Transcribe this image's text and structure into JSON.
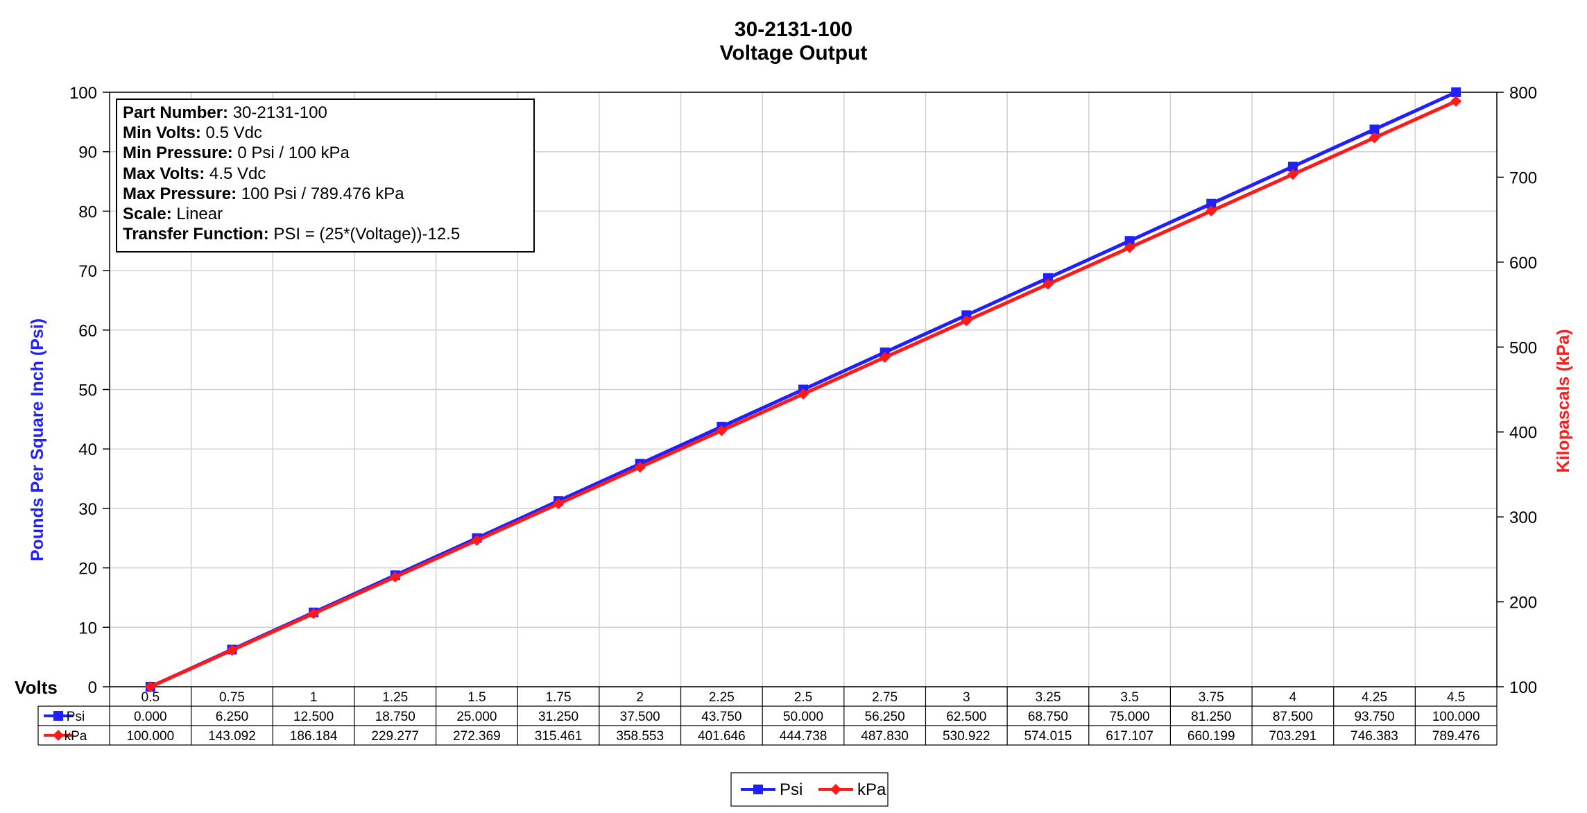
{
  "title_lines": [
    "30-2131-100",
    "Voltage Output"
  ],
  "info_box": [
    {
      "label": "Part Number:",
      "value": "30-2131-100"
    },
    {
      "label": "Min Volts:",
      "value": "0.5 Vdc"
    },
    {
      "label": "Min Pressure:",
      "value": "0 Psi / 100 kPa"
    },
    {
      "label": "Max Volts:",
      "value": "4.5 Vdc"
    },
    {
      "label": "Max Pressure:",
      "value": "100 Psi / 789.476 kPa"
    },
    {
      "label": "Scale:",
      "value": "Linear"
    },
    {
      "label": "Transfer Function:",
      "value": "PSI = (25*(Voltage))-12.5"
    }
  ],
  "chart_data": {
    "type": "line",
    "title": "30-2131-100 Voltage Output",
    "xlabel": "Volts",
    "ylabel": "Pounds Per Square Inch (Psi)",
    "y2label": "Kilopascals (kPa)",
    "categories": [
      "0.5",
      "0.75",
      "1",
      "1.25",
      "1.5",
      "1.75",
      "2",
      "2.25",
      "2.5",
      "2.75",
      "3",
      "3.25",
      "3.5",
      "3.75",
      "4",
      "4.25",
      "4.5"
    ],
    "ylim": [
      0,
      100
    ],
    "y2lim": [
      100,
      800
    ],
    "yticks": [
      "0",
      "10",
      "20",
      "30",
      "40",
      "50",
      "60",
      "70",
      "80",
      "90",
      "100"
    ],
    "y2ticks": [
      "100",
      "200",
      "300",
      "400",
      "500",
      "600",
      "700",
      "800"
    ],
    "grid": true,
    "legend_position": "bottom-center",
    "series": [
      {
        "name": "Psi",
        "axis": "left",
        "color": "#1f1fff",
        "marker": "square",
        "values": [
          0,
          6.25,
          12.5,
          18.75,
          25,
          31.25,
          37.5,
          43.75,
          50,
          56.25,
          62.5,
          68.75,
          75,
          81.25,
          87.5,
          93.75,
          100
        ],
        "labels": [
          "0.000",
          "6.250",
          "12.500",
          "18.750",
          "25.000",
          "31.250",
          "37.500",
          "43.750",
          "50.000",
          "56.250",
          "62.500",
          "68.750",
          "75.000",
          "81.250",
          "87.500",
          "93.750",
          "100.000"
        ]
      },
      {
        "name": "kPa",
        "axis": "right",
        "color": "#ff1a1a",
        "marker": "diamond",
        "values": [
          100,
          143.092,
          186.184,
          229.277,
          272.369,
          315.461,
          358.553,
          401.646,
          444.738,
          487.83,
          530.922,
          574.015,
          617.107,
          660.199,
          703.291,
          746.383,
          789.476
        ],
        "labels": [
          "100.000",
          "143.092",
          "186.184",
          "229.277",
          "272.369",
          "315.461",
          "358.553",
          "401.646",
          "444.738",
          "487.830",
          "530.922",
          "574.015",
          "617.107",
          "660.199",
          "703.291",
          "746.383",
          "789.476"
        ]
      }
    ]
  }
}
